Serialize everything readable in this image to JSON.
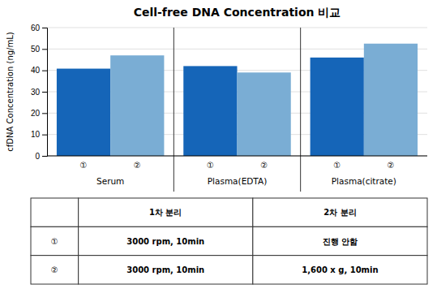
{
  "chart_data": {
    "type": "bar",
    "title": "Cell-free DNA Concentration 비교",
    "ylabel": "cfDNA Concentration (ng/mL)",
    "categories": [
      "Serum",
      "Plasma(EDTA)",
      "Plasma(citrate)"
    ],
    "series": [
      {
        "name": "①",
        "color": "#1565b8",
        "values": [
          40.8,
          42.0,
          46.0
        ]
      },
      {
        "name": "②",
        "color": "#7aadd4",
        "values": [
          47.0,
          39.0,
          52.5
        ]
      }
    ],
    "ylim": [
      0,
      60
    ],
    "yticks": [
      0,
      10,
      20,
      30,
      40,
      50,
      60
    ],
    "grid": true,
    "table": {
      "columns": [
        "1차 분리",
        "2차 분리"
      ],
      "rows": [
        {
          "label": "①",
          "cells": [
            "3000 rpm, 10min",
            "진행 안함"
          ]
        },
        {
          "label": "②",
          "cells": [
            "3000 rpm, 10min",
            "1,600 x g, 10min"
          ]
        }
      ]
    }
  }
}
